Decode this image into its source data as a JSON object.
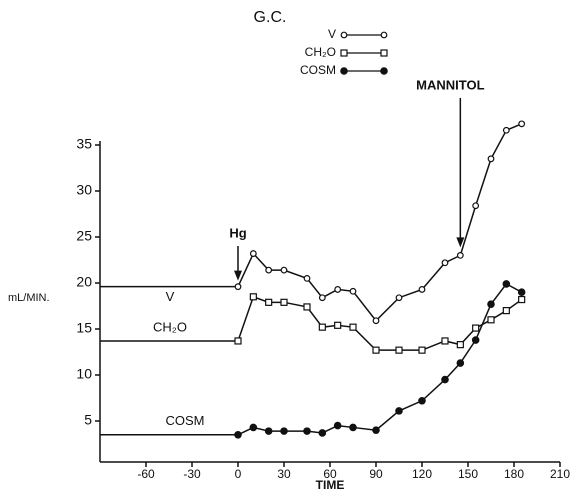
{
  "chart_data": {
    "type": "line",
    "title": "G.C.",
    "x_label": "TIME",
    "y_label": "mL/MIN.",
    "x": [
      0,
      10,
      20,
      30,
      45,
      55,
      65,
      75,
      90,
      105,
      120,
      135,
      145,
      155,
      165,
      175,
      185
    ],
    "series": [
      {
        "name": "V",
        "marker": "open-circle",
        "color": "#111111",
        "values": [
          19.6,
          23.2,
          21.4,
          21.4,
          20.5,
          18.4,
          19.3,
          19.1,
          15.9,
          18.4,
          19.3,
          22.2,
          23.0,
          28.4,
          33.5,
          36.6,
          37.3
        ]
      },
      {
        "name": "CH₂O",
        "marker": "open-square",
        "color": "#111111",
        "values": [
          13.7,
          18.5,
          17.9,
          17.9,
          17.4,
          15.2,
          15.4,
          15.2,
          12.7,
          12.7,
          12.7,
          13.7,
          13.3,
          15.1,
          16.0,
          17.0,
          18.2
        ]
      },
      {
        "name": "COSM",
        "marker": "filled-circle",
        "color": "#111111",
        "values": [
          3.5,
          4.3,
          3.9,
          3.9,
          3.9,
          3.7,
          4.5,
          4.3,
          4.0,
          6.1,
          7.2,
          9.5,
          11.3,
          13.8,
          17.7,
          19.9,
          19.0
        ]
      }
    ],
    "annotations": [
      {
        "text": "Hg",
        "x": 0
      },
      {
        "text": "MANNITOL",
        "x": 145
      }
    ],
    "xlim": [
      -90,
      210
    ],
    "xticks": [
      -60,
      -30,
      0,
      30,
      60,
      90,
      120,
      150,
      180,
      210
    ],
    "ylim": [
      0,
      35
    ],
    "yticks": [
      5,
      10,
      15,
      20,
      25,
      30,
      35
    ]
  }
}
